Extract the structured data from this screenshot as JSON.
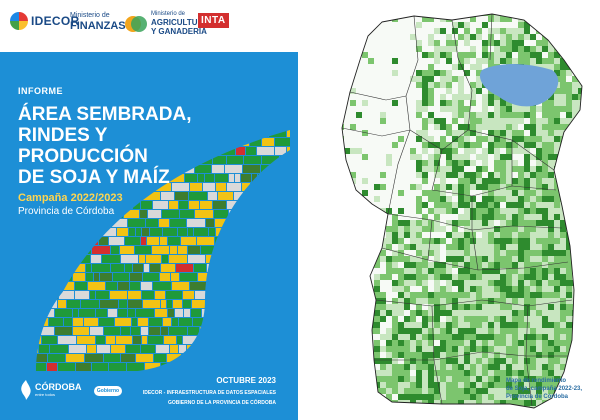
{
  "cover": {
    "logos": {
      "idecor": "IDECOR",
      "finanzas_small": "Ministerio de",
      "finanzas_big": "FINANZAS",
      "agricultura_small": "Ministerio de",
      "agricultura_big1": "AGRICULTURA",
      "agricultura_big2": "Y GANADERÍA",
      "inta": "INTA"
    },
    "kicker": "INFORME",
    "title_lines": [
      "ÁREA SEMBRADA,",
      "RINDES Y",
      "PRODUCCIÓN",
      "DE SOJA Y MAÍZ"
    ],
    "campaign": "Campaña 2022/2023",
    "province": "Provincia de Córdoba",
    "cordoba_logo": "CÓRDOBA",
    "cordoba_sub": "entre todos",
    "cordoba_badge": "Gobierno",
    "date": "OCTUBRE 2023",
    "infra": "IDECOR - INFRAESTRUCTURA DE DATOS ESPACIALES",
    "gov": "GOBIERNO DE LA PROVINCIA DE CÓRDOBA",
    "colors": {
      "background": "#1d8fd6",
      "soy": "#1f9a3a",
      "maize": "#f2c314",
      "other": "#d9d9d9"
    }
  },
  "map": {
    "caption_lines": [
      "Mapa de rendimiento",
      "de Soja, campaña 2022-23,",
      "Provincia de Córdoba"
    ],
    "colors": {
      "low": "#c8e6c0",
      "mid": "#7cc56e",
      "high": "#2e8b2e",
      "water": "#6fa3d8",
      "border": "#333333"
    }
  }
}
